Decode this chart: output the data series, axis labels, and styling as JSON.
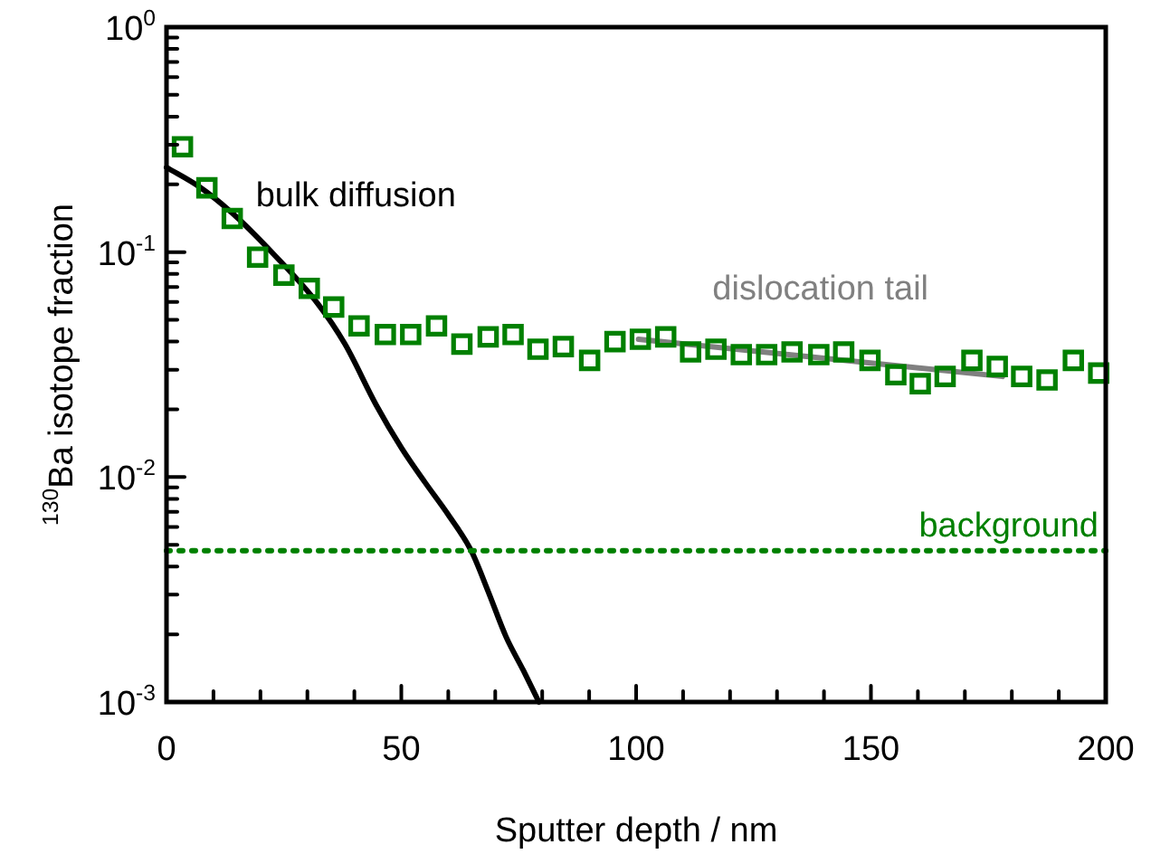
{
  "chart_data": {
    "type": "scatter",
    "xlabel": "Sputter depth / nm",
    "ylabel": "$^{130}$Ba isotope fraction",
    "log": "y",
    "grid": false,
    "legend": false,
    "xlim": [
      0,
      200
    ],
    "xticks": [
      0,
      {
        "value": 10,
        "label": null
      },
      {
        "value": 20,
        "label": null
      },
      {
        "value": 30,
        "label": null
      },
      {
        "value": 40,
        "label": null
      },
      50,
      {
        "value": 60,
        "label": null
      },
      {
        "value": 70,
        "label": null
      },
      {
        "value": 80,
        "label": null
      },
      {
        "value": 90,
        "label": null
      },
      100,
      {
        "value": 110,
        "label": null
      },
      {
        "value": 120,
        "label": null
      },
      {
        "value": 130,
        "label": null
      },
      {
        "value": 140,
        "label": null
      },
      150,
      {
        "value": 160,
        "label": null
      },
      {
        "value": 170,
        "label": null
      },
      {
        "value": 180,
        "label": null
      },
      {
        "value": 190,
        "label": null
      },
      200
    ],
    "ylim": [
      0.001,
      1
    ],
    "yticks": [
      {
        "value": 0.001,
        "label": "10$^{-3}$"
      },
      {
        "value": 0.002,
        "label": null
      },
      {
        "value": 0.003,
        "label": null
      },
      {
        "value": 0.004,
        "label": null
      },
      {
        "value": 0.005,
        "label": null
      },
      {
        "value": 0.006,
        "label": null
      },
      {
        "value": 0.007,
        "label": null
      },
      {
        "value": 0.008,
        "label": null
      },
      {
        "value": 0.009,
        "label": null
      },
      {
        "value": 0.01,
        "label": "10$^{-2}$"
      },
      {
        "value": 0.02,
        "label": null
      },
      {
        "value": 0.03,
        "label": null
      },
      {
        "value": 0.04,
        "label": null
      },
      {
        "value": 0.05,
        "label": null
      },
      {
        "value": 0.06,
        "label": null
      },
      {
        "value": 0.07,
        "label": null
      },
      {
        "value": 0.08,
        "label": null
      },
      {
        "value": 0.09,
        "label": null
      },
      {
        "value": 0.1,
        "label": "10$^{-1}$"
      },
      {
        "value": 0.2,
        "label": null
      },
      {
        "value": 0.3,
        "label": null
      },
      {
        "value": 0.4,
        "label": null
      },
      {
        "value": 0.5,
        "label": null
      },
      {
        "value": 0.6,
        "label": null
      },
      {
        "value": 0.7,
        "label": null
      },
      {
        "value": 0.8,
        "label": null
      },
      {
        "value": 0.9,
        "label": null
      },
      {
        "value": 1,
        "label": "10$^{0}$"
      }
    ],
    "ref_lines": [
      {
        "axis": "y",
        "value": 0.0047,
        "label": "background",
        "color": "#008000",
        "line_style": "dotted"
      }
    ],
    "series": [
      {
        "color": "#008000",
        "marker": "square",
        "x": [
          3.4,
          8.6,
          14.0,
          19.4,
          25.0,
          30.4,
          35.6,
          41.0,
          46.6,
          52.0,
          57.5,
          62.9,
          68.5,
          73.8,
          79.1,
          84.5,
          90.1,
          95.5,
          100.9,
          106.3,
          111.6,
          117.0,
          122.4,
          127.8,
          133.2,
          138.9,
          144.2,
          149.8,
          155.3,
          160.5,
          165.8,
          171.5,
          176.9,
          182.1,
          187.5,
          193.1,
          198.5
        ],
        "values": [
          0.294,
          0.193,
          0.141,
          0.095,
          0.079,
          0.069,
          0.057,
          0.047,
          0.043,
          0.043,
          0.047,
          0.039,
          0.042,
          0.043,
          0.037,
          0.038,
          0.033,
          0.04,
          0.041,
          0.042,
          0.036,
          0.037,
          0.035,
          0.035,
          0.036,
          0.035,
          0.036,
          0.033,
          0.0285,
          0.026,
          0.028,
          0.033,
          0.031,
          0.028,
          0.027,
          0.033,
          0.029
        ]
      },
      {
        "type": "line",
        "name": "bulk diffusion",
        "color": "#000000",
        "marker": "none",
        "line_style": "solid",
        "x": [
          0,
          7,
          14,
          23,
          32.2,
          38,
          44.6,
          50,
          55,
          60,
          64.9,
          68.5,
          72.3,
          76,
          79.3
        ],
        "values": [
          0.238,
          0.195,
          0.149,
          0.097,
          0.059,
          0.039,
          0.021,
          0.0135,
          0.0095,
          0.0068,
          0.0047,
          0.0031,
          0.00195,
          0.00138,
          0.001
        ]
      },
      {
        "type": "line",
        "name": "dislocation tail",
        "color": "#808080",
        "marker": "none",
        "line_style": "solid",
        "x": [
          100.5,
          178
        ],
        "values": [
          0.041,
          0.028
        ]
      }
    ]
  }
}
